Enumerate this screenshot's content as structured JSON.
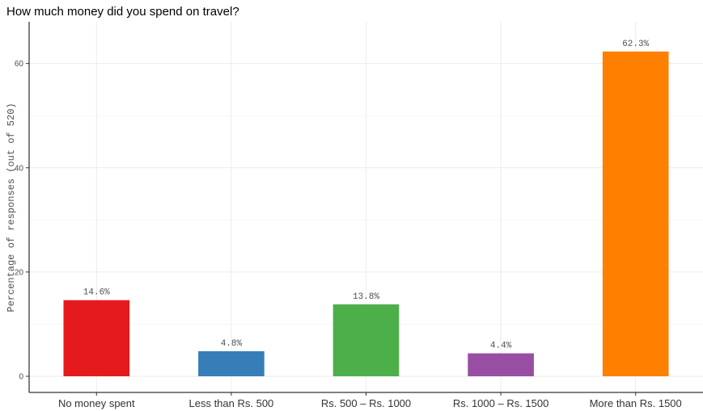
{
  "chart_data": {
    "type": "bar",
    "title": "How much money did you spend on travel?",
    "xlabel": "",
    "ylabel": "Percentage of responses (out of 520)",
    "categories": [
      "No money spent",
      "Less than Rs. 500",
      "Rs. 500 – Rs. 1000",
      "Rs. 1000 – Rs. 1500",
      "More than Rs. 1500"
    ],
    "values": [
      14.6,
      4.8,
      13.8,
      4.4,
      62.3
    ],
    "data_labels": [
      "14.6%",
      "4.8%",
      "13.8%",
      "4.4%",
      "62.3%"
    ],
    "colors": [
      "#e41a1c",
      "#377eb8",
      "#4daf4a",
      "#984ea3",
      "#ff7f00"
    ],
    "ylim": [
      -3.1,
      68
    ],
    "yticks": [
      0,
      20,
      40,
      60
    ],
    "ytick_labels": [
      "0",
      "20",
      "40",
      "60"
    ],
    "grid": true
  }
}
